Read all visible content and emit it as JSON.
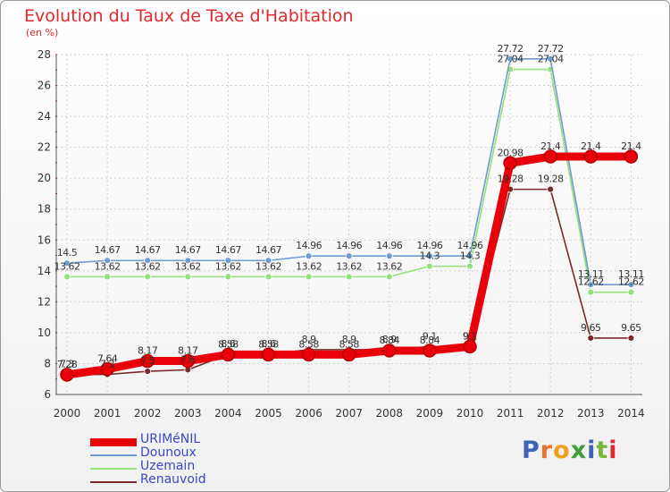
{
  "title": "Evolution du Taux de Taxe d'Habitation",
  "subtitle": "(en %)",
  "brand": {
    "logo_text": "Proxiti",
    "letter_colors": [
      "#3f63b5",
      "#e8752a",
      "#f0a01e",
      "#3f9e3a",
      "#3f63b5",
      "#7ab83a",
      "#e0282d"
    ]
  },
  "chart_data": {
    "type": "line",
    "title": "Evolution du Taux de Taxe d'Habitation",
    "ylabel": "(en %)",
    "xlabel": "",
    "x": [
      "2000",
      "2001",
      "2002",
      "2003",
      "2004",
      "2005",
      "2006",
      "2007",
      "2008",
      "2009",
      "2010",
      "2011",
      "2012",
      "2013",
      "2014"
    ],
    "ylim": [
      6,
      28
    ],
    "yticks": [
      "6",
      "8",
      "10",
      "12",
      "14",
      "16",
      "18",
      "20",
      "22",
      "24",
      "26",
      "28"
    ],
    "grid": true,
    "legend_position": "bottom-left",
    "series": [
      {
        "name": "URIMéNIL",
        "color": "#e8000b",
        "values": [
          7.28,
          7.64,
          8.17,
          8.17,
          8.58,
          8.58,
          8.58,
          8.58,
          8.84,
          8.84,
          9.1,
          20.98,
          21.4,
          21.4,
          21.4
        ],
        "labels": [
          "7.28",
          "7.64",
          "8.17",
          "8.17",
          "8.58",
          "8.58",
          "8.58",
          "8.58",
          "8.84",
          "8.84",
          "9.1",
          "20.98",
          "21.4",
          "21.4",
          "21.4"
        ]
      },
      {
        "name": "Dounoux",
        "color": "#6e9bd2",
        "values": [
          14.5,
          14.67,
          14.67,
          14.67,
          14.67,
          14.67,
          14.96,
          14.96,
          14.96,
          14.96,
          14.96,
          27.72,
          27.72,
          13.11,
          13.11
        ],
        "labels": [
          "14.5",
          "14.67",
          "14.67",
          "14.67",
          "14.67",
          "14.67",
          "14.96",
          "14.96",
          "14.96",
          "14.96",
          "14.96",
          "27.72",
          "27.72",
          "13.11",
          "13.11"
        ]
      },
      {
        "name": "Uzemain",
        "color": "#94e07a",
        "values": [
          13.62,
          13.62,
          13.62,
          13.62,
          13.62,
          13.62,
          13.62,
          13.62,
          13.62,
          14.3,
          14.3,
          27.04,
          27.04,
          12.62,
          12.62
        ],
        "labels": [
          "13.62",
          "13.62",
          "13.62",
          "13.62",
          "13.62",
          "13.62",
          "13.62",
          "13.62",
          "13.62",
          "14.3",
          "14.3",
          "27.04",
          "27.04",
          "12.62",
          "12.62"
        ]
      },
      {
        "name": "Renauvoid",
        "color": "#7a2a2a",
        "values": [
          7.3,
          7.3,
          7.5,
          7.6,
          8.6,
          8.6,
          8.9,
          8.9,
          8.9,
          9.1,
          9.1,
          19.28,
          19.28,
          9.65,
          9.65
        ],
        "labels": [
          "7.3",
          "7.3",
          "7.5",
          "7.6",
          "8.6",
          "8.6",
          "8.9",
          "8.9",
          "8.9",
          "9.1",
          "9.1",
          "19.28",
          "19.28",
          "9.65",
          "9.65"
        ]
      }
    ]
  }
}
